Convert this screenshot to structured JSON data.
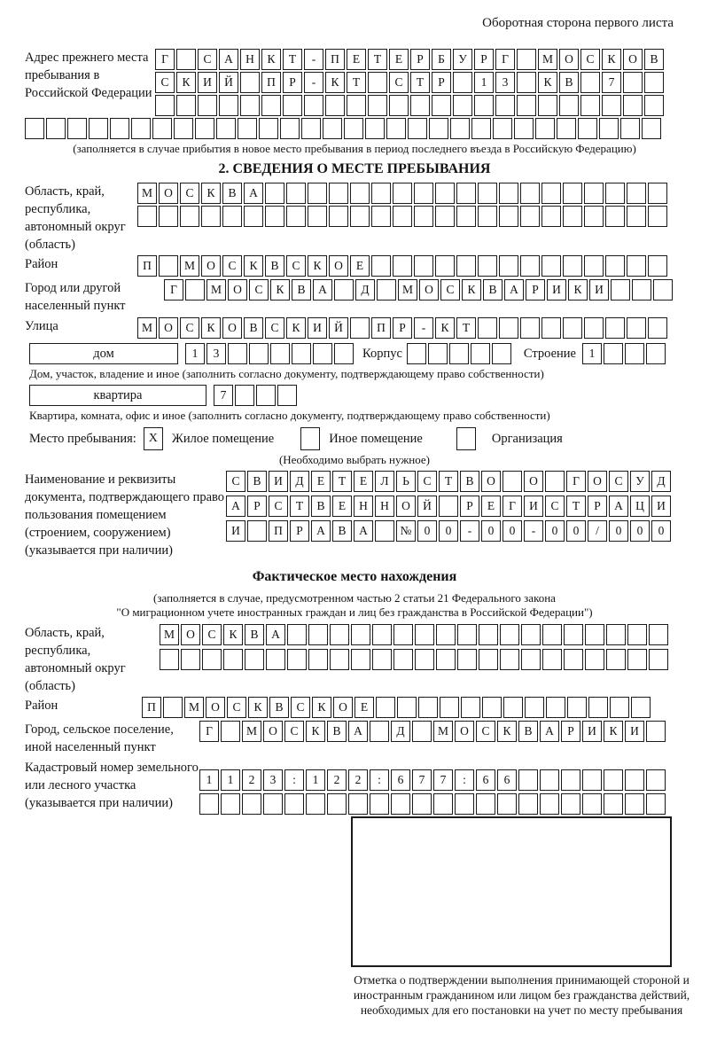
{
  "page_caption": "Оборотная сторона первого листа",
  "prev_address": {
    "label": "Адрес прежнего места пребывания в Российской Федерации",
    "rows": [
      {
        "len": 24,
        "text": "Г САНКТ-ПЕТЕРБУРГ МОСКОВ"
      },
      {
        "len": 24,
        "text": "СКИЙ ПР-КТ СТР 13 КВ 7"
      },
      {
        "len": 24,
        "text": ""
      },
      {
        "len": 30,
        "text": ""
      }
    ],
    "note": "(заполняется в случае прибытия в новое место пребывания в период последнего въезда в Российскую Федерацию)"
  },
  "section2": {
    "title": "2. СВЕДЕНИЯ О МЕСТЕ ПРЕБЫВАНИЯ",
    "region": {
      "label": "Область, край, республика, автономный округ (область)",
      "rows": [
        {
          "len": 25,
          "text": "МОСКВА"
        },
        {
          "len": 25,
          "text": ""
        }
      ]
    },
    "district": {
      "label": "Район",
      "row": {
        "len": 25,
        "text": "П МОСКВСКОЕ"
      }
    },
    "city": {
      "label": "Город или другой населенный пункт",
      "row": {
        "len": 24,
        "text": "Г МОСКВА Д МОСКВАРИКИ"
      }
    },
    "street": {
      "label": "Улица",
      "row": {
        "len": 25,
        "text": "МОСКОВСКИЙ ПР-КТ"
      }
    },
    "house": {
      "label": "дом",
      "cells": {
        "len": 8,
        "text": "13"
      },
      "korpus_label": "Корпус",
      "korpus_cells": {
        "len": 5,
        "text": ""
      },
      "stroenie_label": "Строение",
      "stroenie_cells": {
        "len": 4,
        "text": "1"
      }
    },
    "house_note": "Дом, участок, владение и иное (заполнить согласно документу, подтверждающему право собственности)",
    "apartment": {
      "label": "квартира",
      "cells": {
        "len": 4,
        "text": "7"
      }
    },
    "apartment_note": "Квартира, комната, офис и иное (заполнить согласно документу, подтверждающему право собственности)",
    "stay_type": {
      "label": "Место пребывания:",
      "options": [
        {
          "label": "Жилое помещение",
          "mark": "X"
        },
        {
          "label": "Иное помещение",
          "mark": ""
        },
        {
          "label": "Организация",
          "mark": ""
        }
      ],
      "note": "(Необходимо выбрать нужное)"
    },
    "document": {
      "label": "Наименование и реквизиты документа, подтверждающего право пользования помещением (строением, сооружением) (указывается при наличии)",
      "rows": [
        {
          "len": 21,
          "text": "СВИДЕТЕЛЬСТВО О ГОСУД"
        },
        {
          "len": 21,
          "text": "АРСТВЕННОЙ РЕГИСТРАЦИ"
        },
        {
          "len": 21,
          "text": "И ПРАВА №00-00-00/000"
        }
      ]
    }
  },
  "actual_location": {
    "title": "Фактическое место нахождения",
    "note_line1": "(заполняется в случае, предусмотренном частью 2 статьи 21 Федерального закона",
    "note_line2": "\"О миграционном учете иностранных граждан и лиц без гражданства в Российской Федерации\")",
    "region": {
      "label": "Область, край, республика, автономный округ (область)",
      "rows": [
        {
          "len": 24,
          "text": "МОСКВА"
        },
        {
          "len": 24,
          "text": ""
        }
      ]
    },
    "district": {
      "label": "Район",
      "row": {
        "len": 24,
        "text": "П МОСКВСКОЕ"
      }
    },
    "city": {
      "label": "Город, сельское поселение, иной населенный пункт",
      "row": {
        "len": 22,
        "text": "Г МОСКВА Д МОСКВАРИКИ"
      }
    },
    "cadastral": {
      "label": "Кадастровый номер земельного или лесного участка (указывается при наличии)",
      "rows": [
        {
          "len": 22,
          "text": "1123:122:677:66"
        },
        {
          "len": 22,
          "text": ""
        }
      ]
    }
  },
  "stamp": {
    "note": "Отметка о подтверждении выполнения принимающей стороной и иностранным гражданином или лицом без гражданства действий, необходимых для его постановки на учет по месту пребывания"
  }
}
